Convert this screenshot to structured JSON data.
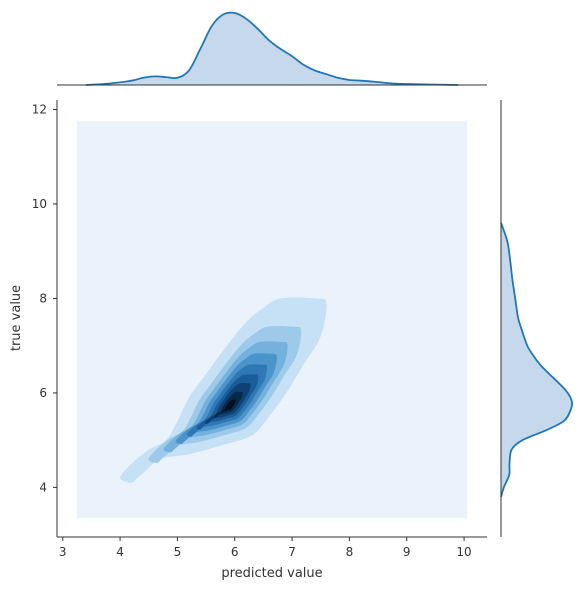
{
  "chart_data": {
    "type": "kde-joint",
    "title": "",
    "xlabel": "predicted value",
    "ylabel": "true value",
    "xlim": [
      2.9,
      10.4
    ],
    "ylim": [
      2.95,
      12.2
    ],
    "x_ticks": [
      3,
      4,
      5,
      6,
      7,
      8,
      9,
      10
    ],
    "y_ticks": [
      4,
      6,
      8,
      10,
      12
    ],
    "grid": false,
    "colors": {
      "line": "#1f77b4",
      "marginal_fill": "#c6d9ec",
      "contour_levels": [
        "#eaf3fc",
        "#c6e0f5",
        "#9ecae9",
        "#74b1dc",
        "#4b93cb",
        "#2f78b6",
        "#1b5d99",
        "#0e4275",
        "#07284a",
        "#02101f"
      ]
    },
    "joint_kde": {
      "center": [
        5.9,
        5.7
      ],
      "peak_point": [
        5.88,
        5.7
      ],
      "region_x": [
        3.25,
        10.05
      ],
      "region_y": [
        3.35,
        11.75
      ],
      "outer_contour": [
        [
          6.8,
          8.0
        ],
        [
          7.4,
          8.0
        ],
        [
          7.6,
          7.9
        ],
        [
          7.5,
          7.2
        ],
        [
          7.2,
          6.6
        ],
        [
          6.9,
          6.0
        ],
        [
          6.6,
          5.5
        ],
        [
          6.3,
          5.1
        ],
        [
          5.8,
          4.9
        ],
        [
          5.2,
          4.7
        ],
        [
          4.7,
          4.6
        ],
        [
          4.4,
          4.3
        ],
        [
          4.3,
          4.2
        ],
        [
          4.2,
          4.1
        ],
        [
          4.0,
          4.2
        ],
        [
          4.2,
          4.5
        ],
        [
          4.5,
          4.8
        ],
        [
          4.8,
          5.0
        ],
        [
          5.0,
          5.4
        ],
        [
          5.2,
          5.9
        ],
        [
          5.5,
          6.4
        ],
        [
          5.8,
          6.9
        ],
        [
          6.2,
          7.5
        ],
        [
          6.5,
          7.8
        ]
      ]
    },
    "marginal_x": {
      "x": [
        3.4,
        3.8,
        4.2,
        4.4,
        4.6,
        4.8,
        5.0,
        5.2,
        5.4,
        5.6,
        5.8,
        6.0,
        6.2,
        6.4,
        6.6,
        6.8,
        7.0,
        7.2,
        7.4,
        7.6,
        7.8,
        8.0,
        8.2,
        8.5,
        8.8,
        9.2,
        9.9
      ],
      "density": [
        0.0,
        0.02,
        0.06,
        0.1,
        0.12,
        0.11,
        0.1,
        0.2,
        0.5,
        0.82,
        0.98,
        1.0,
        0.92,
        0.78,
        0.62,
        0.5,
        0.4,
        0.28,
        0.2,
        0.15,
        0.1,
        0.07,
        0.06,
        0.04,
        0.02,
        0.01,
        0.0
      ]
    },
    "marginal_y": {
      "y": [
        3.8,
        4.0,
        4.2,
        4.3,
        4.5,
        4.8,
        5.0,
        5.2,
        5.4,
        5.6,
        5.8,
        6.0,
        6.2,
        6.4,
        6.6,
        6.8,
        7.0,
        7.3,
        7.6,
        8.0,
        8.4,
        8.8,
        9.2,
        9.6
      ],
      "density": [
        0.0,
        0.04,
        0.1,
        0.12,
        0.12,
        0.15,
        0.3,
        0.62,
        0.88,
        0.97,
        1.0,
        0.94,
        0.82,
        0.68,
        0.55,
        0.45,
        0.37,
        0.3,
        0.24,
        0.2,
        0.16,
        0.13,
        0.09,
        0.0
      ]
    }
  }
}
